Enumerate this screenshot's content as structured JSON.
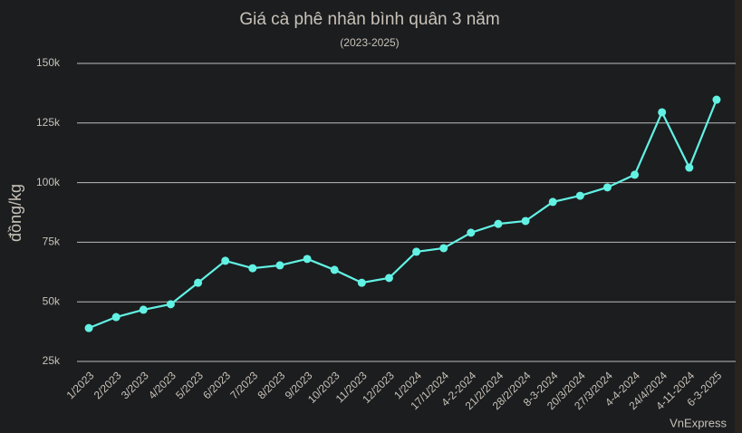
{
  "chart_data": {
    "type": "line",
    "title": "Giá cà phê nhân bình quân 3 năm",
    "subtitle": "(2023-2025)",
    "y_label": "đồng/kg",
    "source": "VnExpress",
    "categories": [
      "1/2023",
      "2/2023",
      "3/2023",
      "4/2023",
      "5/2023",
      "6/2023",
      "7/2023",
      "8/2023",
      "9/2023",
      "10/2023",
      "11/2023",
      "12/2023",
      "1/2024",
      "17/1/2024",
      "4-2-2024",
      "21/2/2024",
      "28/2/2024",
      "8-3-2024",
      "20/3/2024",
      "27/3/2024",
      "4-4-2024",
      "24/4/2024",
      "4-11-2024",
      "6-3-2025"
    ],
    "series": [
      {
        "name": "Giá cà phê nhân",
        "color": "#62f2e4",
        "values": [
          39000,
          43600,
          46700,
          49000,
          58000,
          67200,
          64100,
          65300,
          68000,
          63400,
          58000,
          60000,
          71000,
          72500,
          79000,
          82700,
          83900,
          91900,
          94500,
          98000,
          103300,
          129500,
          106300,
          134800
        ]
      }
    ],
    "ylim": [
      25000,
      150000
    ],
    "yticks": [
      {
        "value": 25000,
        "label": "25k"
      },
      {
        "value": 50000,
        "label": "50k"
      },
      {
        "value": 75000,
        "label": "75k"
      },
      {
        "value": 100000,
        "label": "100k"
      },
      {
        "value": 125000,
        "label": "125k"
      },
      {
        "value": 150000,
        "label": "150k"
      }
    ],
    "grid": true
  }
}
